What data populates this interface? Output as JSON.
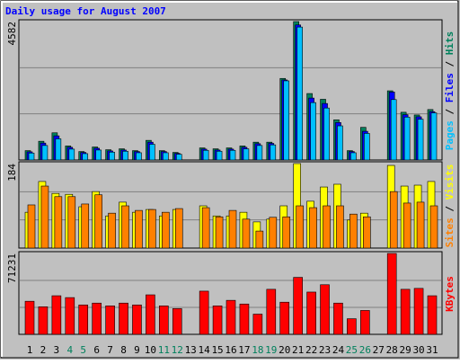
{
  "title": "Daily usage for August 2007",
  "legend_separator": " / ",
  "chart_data": [
    {
      "type": "bar",
      "ylim": [
        0,
        4582
      ],
      "grid": true,
      "series": [
        {
          "name": "Hits",
          "color": "#00805c",
          "values": [
            310,
            620,
            900,
            465,
            280,
            430,
            340,
            370,
            310,
            650,
            310,
            250,
            0,
            400,
            370,
            400,
            465,
            590,
            590,
            2700,
            4582,
            2200,
            2010,
            1330,
            310,
            1080,
            0,
            2290,
            1580,
            1490,
            1670
          ]
        },
        {
          "name": "Files",
          "color": "#0000ff",
          "values": [
            270,
            560,
            800,
            420,
            250,
            390,
            300,
            330,
            280,
            590,
            280,
            220,
            0,
            360,
            330,
            360,
            420,
            540,
            550,
            2650,
            4470,
            2050,
            1870,
            1240,
            280,
            950,
            0,
            2250,
            1500,
            1430,
            1600
          ]
        },
        {
          "name": "Pages",
          "color": "#00c0ff",
          "values": [
            230,
            480,
            700,
            360,
            210,
            330,
            260,
            290,
            240,
            520,
            240,
            190,
            0,
            320,
            290,
            320,
            370,
            480,
            500,
            2620,
            4400,
            1900,
            1720,
            1130,
            240,
            880,
            0,
            2000,
            1420,
            1350,
            1560
          ]
        }
      ]
    },
    {
      "type": "bar",
      "ylim": [
        0,
        184
      ],
      "grid": true,
      "series": [
        {
          "name": "Visits",
          "color": "#ffff00",
          "values": [
            78,
            145,
            119,
            117,
            90,
            123,
            70,
            100,
            78,
            84,
            70,
            84,
            0,
            92,
            70,
            70,
            78,
            57,
            63,
            92,
            184,
            102,
            133,
            139,
            61,
            76,
            0,
            180,
            135,
            137,
            145
          ]
        },
        {
          "name": "Sites",
          "color": "#ff8000",
          "values": [
            94,
            135,
            112,
            112,
            96,
            116,
            76,
            92,
            82,
            84,
            78,
            86,
            0,
            88,
            68,
            82,
            63,
            37,
            67,
            68,
            92,
            88,
            92,
            92,
            74,
            68,
            0,
            123,
            98,
            100,
            92
          ]
        }
      ]
    },
    {
      "type": "bar",
      "ylim": [
        0,
        71231
      ],
      "grid": true,
      "categories": [
        "1",
        "2",
        "3",
        "4",
        "5",
        "6",
        "7",
        "8",
        "9",
        "10",
        "11",
        "12",
        "13",
        "14",
        "15",
        "16",
        "17",
        "18",
        "19",
        "20",
        "21",
        "22",
        "23",
        "24",
        "25",
        "26",
        "27",
        "28",
        "29",
        "30",
        "31"
      ],
      "category_colors": [
        "#000000",
        "#000000",
        "#000000",
        "#00805c",
        "#00805c",
        "#000000",
        "#000000",
        "#000000",
        "#000000",
        "#000000",
        "#00805c",
        "#00805c",
        "#000000",
        "#000000",
        "#000000",
        "#000000",
        "#000000",
        "#00805c",
        "#00805c",
        "#000000",
        "#000000",
        "#000000",
        "#000000",
        "#000000",
        "#00805c",
        "#00805c",
        "#000000",
        "#000000",
        "#000000",
        "#000000",
        "#000000"
      ],
      "series": [
        {
          "name": "KBytes",
          "color": "#ff0000",
          "values": [
            29140,
            24280,
            33990,
            32370,
            25900,
            27520,
            25090,
            27520,
            25900,
            34800,
            25090,
            22660,
            0,
            38040,
            25090,
            29950,
            26710,
            17800,
            39660,
            28330,
            50180,
            37230,
            43700,
            27520,
            13760,
            21040,
            0,
            71231,
            39660,
            40470,
            33990
          ]
        }
      ]
    }
  ]
}
